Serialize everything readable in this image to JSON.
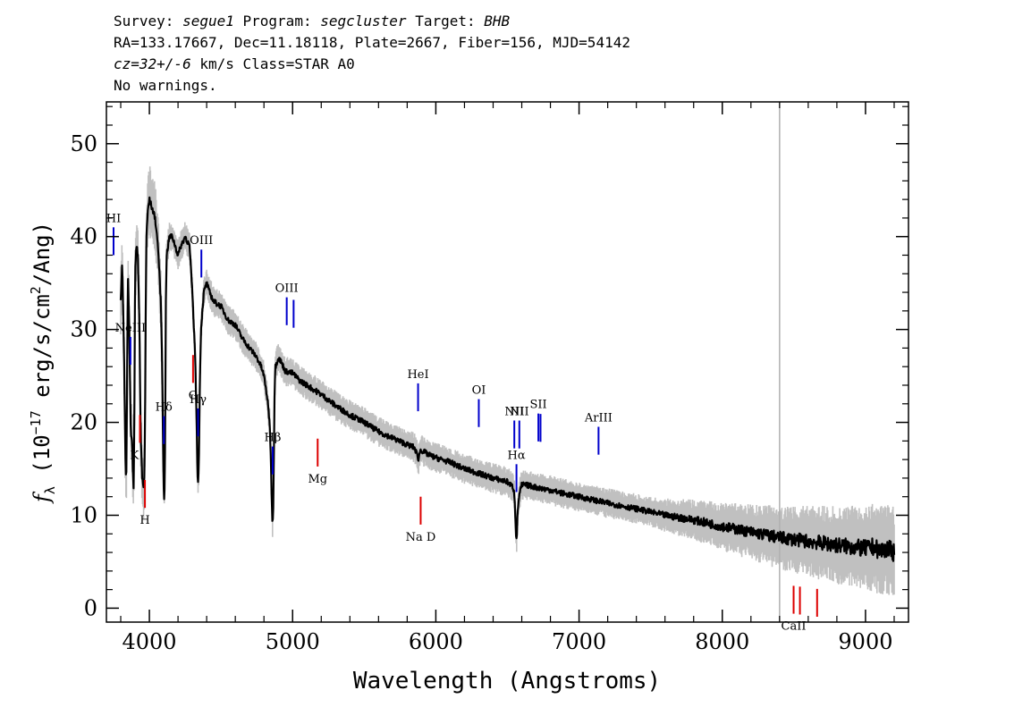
{
  "header": {
    "survey_label": "Survey:",
    "survey": "segue1",
    "program_label": "Program:",
    "program": "segcluster",
    "target_label": "Target:",
    "target": "BHB",
    "line2": "RA=133.17667, Dec=11.18118, Plate=2667, Fiber=156, MJD=54142",
    "cz": "cz=32+/-6",
    "line3_rest": "km/s Class=STAR A0",
    "line4": "No warnings."
  },
  "chart_data": {
    "type": "line",
    "xlabel": "Wavelength (Angstroms)",
    "ylabel_parts": {
      "f": "f",
      "sub": "λ",
      "pre": " (10",
      "exp": "−17",
      "mid": " erg/s/cm",
      "exp2": "2",
      "post": "/Ang)"
    },
    "xlim": [
      3700,
      9300
    ],
    "ylim": [
      -1.5,
      54.5
    ],
    "xticks": [
      4000,
      5000,
      6000,
      7000,
      8000,
      9000
    ],
    "yticks": [
      0,
      10,
      20,
      30,
      40,
      50
    ],
    "grid": false,
    "series": [
      {
        "color": "#000000",
        "noise_color": "#c0c0c0",
        "x": [
          3800,
          3810,
          3820,
          3830,
          3835,
          3840,
          3850,
          3860,
          3870,
          3880,
          3885,
          3890,
          3895,
          3900,
          3910,
          3920,
          3930,
          3940,
          3950,
          3960,
          3965,
          3970,
          3975,
          3980,
          3990,
          4000,
          4020,
          4040,
          4060,
          4080,
          4090,
          4095,
          4100,
          4103,
          4106,
          4110,
          4115,
          4120,
          4140,
          4160,
          4180,
          4200,
          4220,
          4250,
          4280,
          4300,
          4320,
          4330,
          4335,
          4340,
          4345,
          4350,
          4360,
          4380,
          4400,
          4420,
          4450,
          4500,
          4550,
          4600,
          4650,
          4700,
          4750,
          4780,
          4800,
          4820,
          4840,
          4850,
          4855,
          4860,
          4865,
          4870,
          4875,
          4880,
          4900,
          4920,
          4950,
          5000,
          5050,
          5100,
          5150,
          5200,
          5300,
          5400,
          5500,
          5600,
          5700,
          5800,
          5850,
          5870,
          5880,
          5890,
          5895,
          5900,
          5950,
          6000,
          6100,
          6200,
          6300,
          6400,
          6450,
          6500,
          6520,
          6540,
          6550,
          6555,
          6560,
          6563,
          6566,
          6570,
          6580,
          6600,
          6650,
          6700,
          6800,
          6900,
          7000,
          7200,
          7400,
          7600,
          7800,
          8000,
          8200,
          8400,
          8500,
          8600,
          8700,
          8800,
          8900,
          9000,
          9050,
          9100,
          9150,
          9200
        ],
        "y": [
          33,
          37,
          30,
          20,
          14,
          15,
          36,
          30,
          19,
          18,
          14,
          13,
          20,
          36,
          39,
          38,
          31,
          18,
          14,
          13,
          14,
          20,
          34,
          40,
          43,
          44,
          43,
          42,
          39,
          33,
          26,
          18,
          13,
          12,
          13,
          18,
          33,
          38,
          40,
          40,
          39,
          38,
          39,
          40,
          39,
          34,
          27,
          20,
          15,
          13.5,
          15,
          22,
          30,
          34,
          35,
          34,
          33,
          32.5,
          31,
          30.5,
          29,
          28,
          27,
          26,
          25,
          23,
          20,
          15,
          11,
          9,
          11,
          18,
          24,
          26,
          27,
          26.5,
          25.5,
          25.3,
          24.5,
          24,
          23.5,
          23,
          21.8,
          20.8,
          20,
          19,
          18.3,
          17.6,
          17.3,
          16.5,
          16,
          17,
          17,
          17,
          16.5,
          16.2,
          15.7,
          15,
          14.5,
          14,
          13.8,
          13.6,
          13.3,
          13,
          12,
          10,
          8,
          7.5,
          8,
          10,
          12,
          13.3,
          13.2,
          13,
          12.7,
          12.3,
          12,
          11.3,
          10.7,
          10,
          9.5,
          8.8,
          8.2,
          7.6,
          7.4,
          7.2,
          7,
          6.8,
          6.6,
          6.4,
          6.6,
          6.2,
          6.4,
          6
        ]
      }
    ],
    "emission_lines": [
      {
        "label": "HI",
        "x": 3750
      },
      {
        "label": "NeIII",
        "x": 3868
      },
      {
        "label": "Hδ",
        "x": 4101
      },
      {
        "label": "Hγ",
        "x": 4340
      },
      {
        "label": "OIII",
        "x": 4363
      },
      {
        "label": "Hβ",
        "x": 4861
      },
      {
        "label": "OIII",
        "x": 4959
      },
      {
        "label": "",
        "x": 5007
      },
      {
        "label": "HeI",
        "x": 5876
      },
      {
        "label": "OI",
        "x": 6300
      },
      {
        "label": "NII",
        "x": 6548
      },
      {
        "label": "Hα",
        "x": 6563
      },
      {
        "label": "NII",
        "x": 6583
      },
      {
        "label": "SII",
        "x": 6716
      },
      {
        "label": "",
        "x": 6731
      },
      {
        "label": "ArIII",
        "x": 7136
      }
    ],
    "absorption_lines": [
      {
        "label": "K",
        "x": 3934
      },
      {
        "label": "H",
        "x": 3969
      },
      {
        "label": "G",
        "x": 4305
      },
      {
        "label": "Mg",
        "x": 5175
      },
      {
        "label": "Na D",
        "x": 5894
      },
      {
        "label": "CaII",
        "x": 8498
      },
      {
        "label": "",
        "x": 8542
      },
      {
        "label": "",
        "x": 8662
      }
    ],
    "emission_color": "#0000cc",
    "absorption_color": "#dd0000",
    "sky_line": {
      "x": 8400,
      "color": "#b0b0b0"
    }
  }
}
